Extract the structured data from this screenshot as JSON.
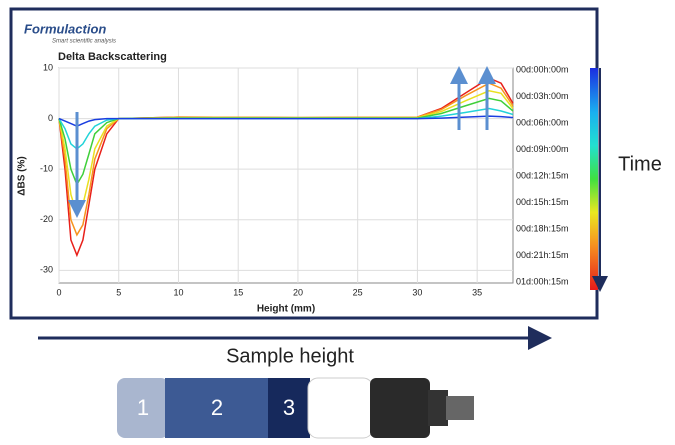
{
  "chart_data": {
    "type": "line",
    "title": "Delta Backscattering",
    "xlabel": "Height (mm)",
    "ylabel": "ΔBS (%)",
    "x": [
      0,
      0.5,
      1,
      1.5,
      2,
      2.5,
      3,
      4,
      5,
      10,
      20,
      30,
      32,
      34,
      36,
      37,
      38
    ],
    "series": [
      {
        "color": "#e8201a",
        "values": [
          0,
          -10,
          -24,
          -27,
          -24,
          -17,
          -10,
          -3,
          0,
          0.3,
          0.2,
          0.3,
          2,
          5,
          8,
          7,
          3
        ]
      },
      {
        "color": "#f7931e",
        "values": [
          0,
          -8,
          -20,
          -23,
          -21,
          -15,
          -8,
          -2,
          0,
          0.3,
          0.2,
          0.3,
          1.8,
          4.5,
          7,
          6,
          2.5
        ]
      },
      {
        "color": "#e9e020",
        "values": [
          0,
          -6,
          -15,
          -19,
          -17,
          -12,
          -6,
          -1.5,
          0,
          0.2,
          0.2,
          0.2,
          1.4,
          3.5,
          5.5,
          5,
          2
        ]
      },
      {
        "color": "#3fcf3a",
        "values": [
          0,
          -4,
          -10,
          -13,
          -11,
          -7,
          -3,
          -0.8,
          0,
          0.1,
          0.1,
          0.1,
          1,
          2.5,
          4,
          3.5,
          1.5
        ]
      },
      {
        "color": "#22d3d8",
        "values": [
          0,
          -2,
          -5,
          -6,
          -5,
          -3,
          -1.5,
          -0.3,
          0,
          0,
          0,
          0,
          0.5,
          1.2,
          2,
          1.5,
          0.8
        ]
      },
      {
        "color": "#1a3ee0",
        "values": [
          0,
          -0.5,
          -1,
          -1.5,
          -1,
          -0.5,
          -0.2,
          0,
          0,
          0,
          0,
          0,
          0.1,
          0.3,
          0.5,
          0.4,
          0.2
        ]
      }
    ],
    "xlim": [
      0,
      38
    ],
    "xticks": [
      0,
      5,
      10,
      15,
      20,
      25,
      30,
      35
    ],
    "ylim": [
      -32.5,
      10
    ],
    "yticks": [
      -30,
      -20,
      -10,
      0,
      10
    ],
    "grid": true,
    "colorbar_labels": [
      "00d:00h:00m",
      "00d:03h:00m",
      "00d:06h:00m",
      "00d:09h:00m",
      "00d:12h:15m",
      "00d:15h:15m",
      "00d:18h:15m",
      "00d:21h:15m",
      "01d:00h:15m"
    ],
    "time_label": "Time",
    "sample_height_label": "Sample height",
    "logo": "Formulaction",
    "logo_tagline": "Smart scientific analysis",
    "zones": [
      "1",
      "2",
      "3"
    ]
  }
}
